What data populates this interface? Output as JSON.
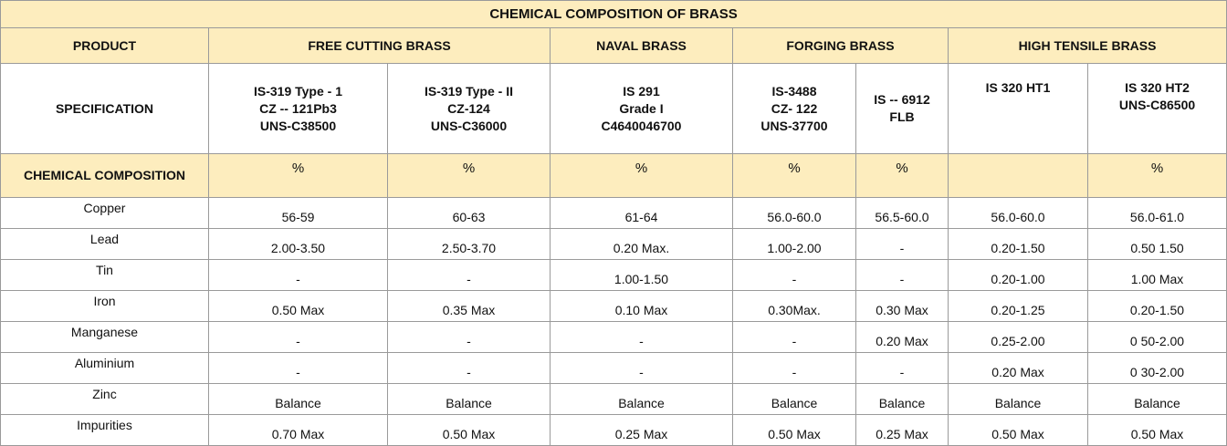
{
  "title": "CHEMICAL COMPOSITION OF BRASS",
  "header": {
    "product_label": "PRODUCT",
    "groups": [
      "FREE CUTTING BRASS",
      "NAVAL BRASS",
      "FORGING BRASS",
      "HIGH TENSILE BRASS"
    ]
  },
  "specification": {
    "label": "SPECIFICATION",
    "cols": [
      [
        "IS-319 Type - 1",
        "CZ -- 121Pb3",
        "UNS-C38500"
      ],
      [
        "IS-319 Type - II",
        "CZ-124",
        "UNS-C36000"
      ],
      [
        "IS 291",
        "Grade I",
        "C4640046700"
      ],
      [
        "IS-3488",
        "CZ- 122",
        "UNS-37700"
      ],
      [
        "IS -- 6912",
        "FLB"
      ],
      [
        "IS 320 HT1"
      ],
      [
        "IS 320 HT2",
        "UNS-C86500"
      ]
    ]
  },
  "composition_header": {
    "label": "CHEMICAL COMPOSITION",
    "units": [
      "%",
      "%",
      "%",
      "%",
      "%",
      "",
      "%"
    ]
  },
  "rows": [
    {
      "element": "Copper",
      "values": [
        "56-59",
        "60-63",
        "61-64",
        "56.0-60.0",
        "56.5-60.0",
        "56.0-60.0",
        "56.0-61.0"
      ]
    },
    {
      "element": "Lead",
      "values": [
        "2.00-3.50",
        "2.50-3.70",
        "0.20 Max.",
        "1.00-2.00",
        "-",
        "0.20-1.50",
        "0.50 1.50"
      ]
    },
    {
      "element": "Tin",
      "values": [
        "-",
        "-",
        "1.00-1.50",
        "-",
        "-",
        "0.20-1.00",
        "1.00 Max"
      ]
    },
    {
      "element": "Iron",
      "values": [
        "0.50 Max",
        "0.35 Max",
        "0.10 Max",
        "0.30Max.",
        "0.30 Max",
        "0.20-1.25",
        "0.20-1.50"
      ]
    },
    {
      "element": "Manganese",
      "values": [
        "-",
        "-",
        "-",
        "-",
        "0.20 Max",
        "0.25-2.00",
        "0 50-2.00"
      ]
    },
    {
      "element": "Aluminium",
      "values": [
        "-",
        "-",
        "-",
        "-",
        "-",
        "0.20 Max",
        "0 30-2.00"
      ]
    },
    {
      "element": "Zinc",
      "values": [
        "Balance",
        "Balance",
        "Balance",
        "Balance",
        "Balance",
        "Balance",
        "Balance"
      ]
    },
    {
      "element": "Impurities",
      "values": [
        "0.70 Max",
        "0.50 Max",
        "0.25 Max",
        "0.50 Max",
        "0.25 Max",
        "0.50 Max",
        "0.50 Max"
      ]
    }
  ],
  "colors": {
    "header_fill": "#fdedbe",
    "border": "#9a9a9a"
  }
}
